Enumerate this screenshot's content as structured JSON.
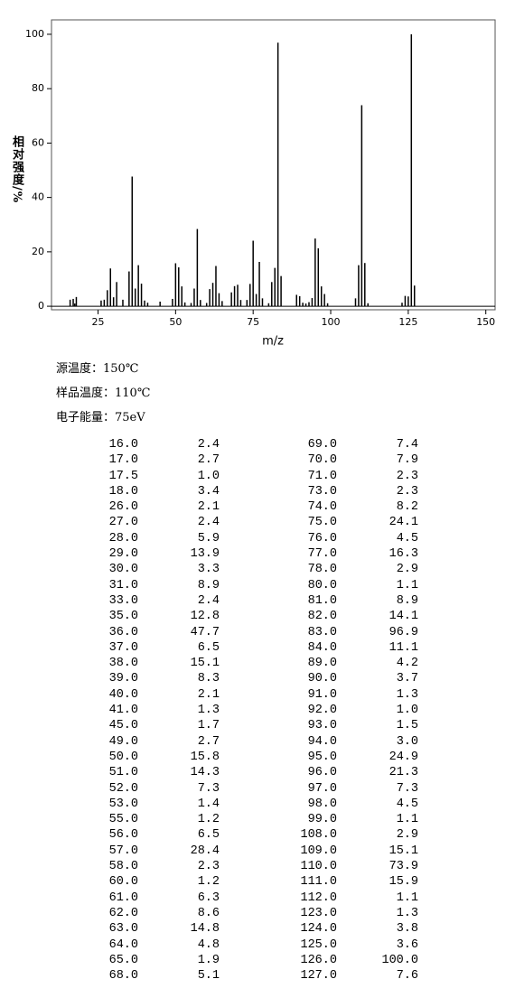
{
  "chart_data": {
    "type": "bar",
    "x_label": "m/z",
    "y_label": "相对强度/%",
    "x": [
      16,
      17,
      17.5,
      18,
      26,
      27,
      28,
      29,
      30,
      31,
      33,
      35,
      36,
      37,
      38,
      39,
      40,
      41,
      45,
      49,
      50,
      51,
      52,
      53,
      55,
      56,
      57,
      58,
      60,
      61,
      62,
      63,
      64,
      65,
      68,
      69,
      70,
      71,
      73,
      74,
      75,
      76,
      77,
      78,
      80,
      81,
      82,
      83,
      84,
      89,
      90,
      91,
      92,
      93,
      94,
      95,
      96,
      97,
      98,
      99,
      108,
      109,
      110,
      111,
      112,
      123,
      124,
      125,
      126,
      127
    ],
    "values": [
      2.4,
      2.7,
      1.0,
      3.4,
      2.1,
      2.4,
      5.9,
      13.9,
      3.3,
      8.9,
      2.4,
      12.8,
      47.7,
      6.5,
      15.1,
      8.3,
      2.1,
      1.3,
      1.7,
      2.7,
      15.8,
      14.3,
      7.3,
      1.4,
      1.2,
      6.5,
      28.4,
      2.3,
      1.2,
      6.3,
      8.6,
      14.8,
      4.8,
      1.9,
      5.1,
      7.4,
      7.9,
      2.3,
      2.3,
      8.2,
      24.1,
      4.5,
      16.3,
      2.9,
      1.1,
      8.9,
      14.1,
      96.9,
      11.1,
      4.2,
      3.7,
      1.3,
      1.0,
      1.5,
      3.0,
      24.9,
      21.3,
      7.3,
      4.5,
      1.1,
      2.9,
      15.1,
      73.9,
      15.9,
      1.1,
      1.3,
      3.8,
      3.6,
      100.0,
      7.6
    ],
    "color": "#000000",
    "xlim": [
      10,
      153
    ],
    "xticks": [
      25,
      50,
      75,
      100,
      125,
      150
    ],
    "ylim": [
      -1.3,
      105.3
    ],
    "yticks": [
      0,
      20,
      40,
      60,
      80,
      100
    ]
  },
  "conditions": [
    "源温度：150℃",
    "样品温度：110℃",
    "电子能量：75eV"
  ],
  "table": {
    "rows": [
      [
        "16.0",
        "2.4",
        "69.0",
        "7.4"
      ],
      [
        "17.0",
        "2.7",
        "70.0",
        "7.9"
      ],
      [
        "17.5",
        "1.0",
        "71.0",
        "2.3"
      ],
      [
        "18.0",
        "3.4",
        "73.0",
        "2.3"
      ],
      [
        "26.0",
        "2.1",
        "74.0",
        "8.2"
      ],
      [
        "27.0",
        "2.4",
        "75.0",
        "24.1"
      ],
      [
        "28.0",
        "5.9",
        "76.0",
        "4.5"
      ],
      [
        "29.0",
        "13.9",
        "77.0",
        "16.3"
      ],
      [
        "30.0",
        "3.3",
        "78.0",
        "2.9"
      ],
      [
        "31.0",
        "8.9",
        "80.0",
        "1.1"
      ],
      [
        "33.0",
        "2.4",
        "81.0",
        "8.9"
      ],
      [
        "35.0",
        "12.8",
        "82.0",
        "14.1"
      ],
      [
        "36.0",
        "47.7",
        "83.0",
        "96.9"
      ],
      [
        "37.0",
        "6.5",
        "84.0",
        "11.1"
      ],
      [
        "38.0",
        "15.1",
        "89.0",
        "4.2"
      ],
      [
        "39.0",
        "8.3",
        "90.0",
        "3.7"
      ],
      [
        "40.0",
        "2.1",
        "91.0",
        "1.3"
      ],
      [
        "41.0",
        "1.3",
        "92.0",
        "1.0"
      ],
      [
        "45.0",
        "1.7",
        "93.0",
        "1.5"
      ],
      [
        "49.0",
        "2.7",
        "94.0",
        "3.0"
      ],
      [
        "50.0",
        "15.8",
        "95.0",
        "24.9"
      ],
      [
        "51.0",
        "14.3",
        "96.0",
        "21.3"
      ],
      [
        "52.0",
        "7.3",
        "97.0",
        "7.3"
      ],
      [
        "53.0",
        "1.4",
        "98.0",
        "4.5"
      ],
      [
        "55.0",
        "1.2",
        "99.0",
        "1.1"
      ],
      [
        "56.0",
        "6.5",
        "108.0",
        "2.9"
      ],
      [
        "57.0",
        "28.4",
        "109.0",
        "15.1"
      ],
      [
        "58.0",
        "2.3",
        "110.0",
        "73.9"
      ],
      [
        "60.0",
        "1.2",
        "111.0",
        "15.9"
      ],
      [
        "61.0",
        "6.3",
        "112.0",
        "1.1"
      ],
      [
        "62.0",
        "8.6",
        "123.0",
        "1.3"
      ],
      [
        "63.0",
        "14.8",
        "124.0",
        "3.8"
      ],
      [
        "64.0",
        "4.8",
        "125.0",
        "3.6"
      ],
      [
        "65.0",
        "1.9",
        "126.0",
        "100.0"
      ],
      [
        "68.0",
        "5.1",
        "127.0",
        "7.6"
      ]
    ]
  }
}
